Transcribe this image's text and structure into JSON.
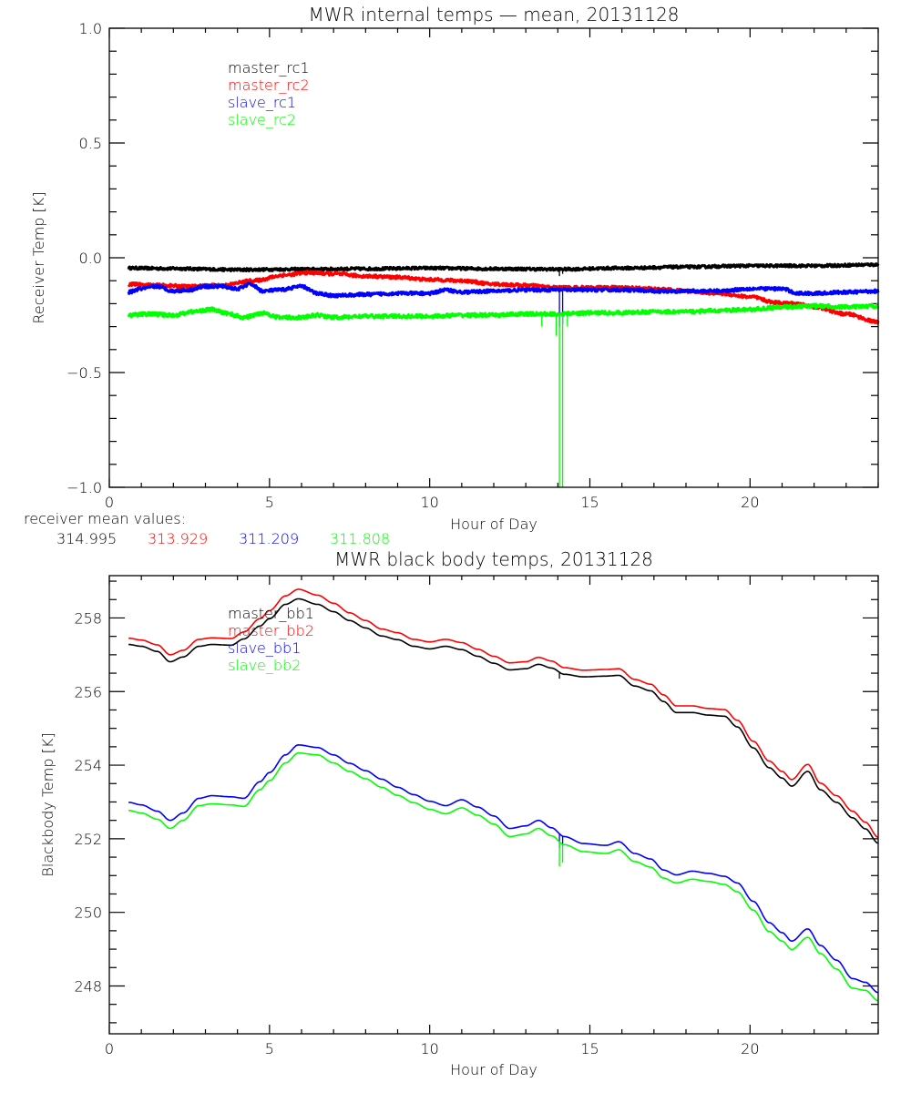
{
  "chart_data": [
    {
      "type": "line",
      "title": "MWR internal temps — mean, 20131128",
      "xlabel": "Hour of Day",
      "ylabel": "Receiver Temp [K]",
      "xlim": [
        0,
        24
      ],
      "ylim": [
        -1.0,
        1.0
      ],
      "xticks": [
        0,
        5,
        10,
        15,
        20
      ],
      "xtick_labels": [
        "0",
        "5",
        "10",
        "15",
        "20"
      ],
      "x_minor_step": 1,
      "yticks": [
        -1.0,
        -0.5,
        0.0,
        0.5,
        1.0
      ],
      "ytick_labels": [
        "−1.0",
        "−0.5",
        "0.0",
        "0.5",
        "1.0"
      ],
      "y_minor_step": 0.1,
      "grid": false,
      "legend_position": "top-left",
      "series": [
        {
          "name": "master_rc1",
          "color": "#000000",
          "noise": 0.006,
          "x": [
            0.6,
            2,
            4,
            6,
            8,
            10,
            12,
            14,
            16,
            18,
            20,
            22,
            24
          ],
          "y": [
            -0.045,
            -0.047,
            -0.052,
            -0.05,
            -0.048,
            -0.045,
            -0.048,
            -0.05,
            -0.045,
            -0.04,
            -0.035,
            -0.035,
            -0.03
          ],
          "spikes": [
            {
              "x": 14.05,
              "y": -0.08
            },
            {
              "x": 14.15,
              "y": -0.07
            }
          ]
        },
        {
          "name": "master_rc2",
          "color": "#ff0000",
          "noise": 0.007,
          "x": [
            0.6,
            1.5,
            2.5,
            3.5,
            4.5,
            5.5,
            6.2,
            7.0,
            8.0,
            9.0,
            10.0,
            11.0,
            12.0,
            13.0,
            14.0,
            15.0,
            16.0,
            17.0,
            18.0,
            19.0,
            20.0,
            20.8,
            21.5,
            22.0,
            23.0,
            24.0
          ],
          "y": [
            -0.115,
            -0.12,
            -0.125,
            -0.12,
            -0.1,
            -0.075,
            -0.065,
            -0.07,
            -0.08,
            -0.085,
            -0.095,
            -0.1,
            -0.115,
            -0.12,
            -0.13,
            -0.13,
            -0.13,
            -0.135,
            -0.145,
            -0.155,
            -0.17,
            -0.195,
            -0.2,
            -0.215,
            -0.245,
            -0.28
          ]
        },
        {
          "name": "slave_rc1",
          "color": "#0000ff",
          "noise": 0.007,
          "x": [
            0.6,
            1.0,
            1.5,
            2.0,
            2.5,
            3.0,
            3.5,
            4.0,
            4.4,
            4.8,
            5.3,
            6.0,
            6.5,
            7.0,
            8.0,
            9.0,
            10.0,
            10.5,
            11.0,
            12.0,
            13.0,
            14.0,
            15.0,
            16.0,
            17.0,
            18.0,
            19.0,
            20.0,
            21.0,
            21.5,
            22.0,
            23.0,
            24.0
          ],
          "y": [
            -0.15,
            -0.135,
            -0.125,
            -0.145,
            -0.14,
            -0.125,
            -0.125,
            -0.135,
            -0.115,
            -0.145,
            -0.14,
            -0.125,
            -0.155,
            -0.165,
            -0.16,
            -0.155,
            -0.155,
            -0.14,
            -0.15,
            -0.145,
            -0.14,
            -0.14,
            -0.14,
            -0.14,
            -0.145,
            -0.145,
            -0.145,
            -0.135,
            -0.135,
            -0.155,
            -0.155,
            -0.15,
            -0.145
          ],
          "spikes": [
            {
              "x": 14.05,
              "y": -0.3
            },
            {
              "x": 14.15,
              "y": -0.29
            }
          ]
        },
        {
          "name": "slave_rc2",
          "color": "#00ff00",
          "noise": 0.008,
          "x": [
            0.6,
            1.2,
            2.0,
            2.6,
            3.2,
            3.6,
            4.2,
            4.8,
            5.3,
            6.0,
            6.5,
            7.0,
            8.0,
            9.0,
            10.0,
            11.0,
            12.0,
            13.0,
            14.0,
            15.0,
            16.0,
            17.0,
            18.0,
            19.0,
            20.0,
            21.0,
            22.0,
            23.0,
            24.0
          ],
          "y": [
            -0.25,
            -0.245,
            -0.25,
            -0.235,
            -0.225,
            -0.24,
            -0.26,
            -0.24,
            -0.26,
            -0.26,
            -0.25,
            -0.26,
            -0.255,
            -0.255,
            -0.255,
            -0.25,
            -0.25,
            -0.245,
            -0.245,
            -0.24,
            -0.24,
            -0.235,
            -0.235,
            -0.23,
            -0.225,
            -0.215,
            -0.21,
            -0.215,
            -0.21
          ],
          "spikes": [
            {
              "x": 13.5,
              "y": -0.3
            },
            {
              "x": 13.95,
              "y": -0.34
            },
            {
              "x": 14.05,
              "y": -1.0
            },
            {
              "x": 14.15,
              "y": -1.0
            },
            {
              "x": 14.3,
              "y": -0.3
            }
          ]
        }
      ],
      "annotation": {
        "label": "receiver mean values:",
        "values": [
          {
            "text": "314.995",
            "color": "#000000"
          },
          {
            "text": "313.929",
            "color": "#ff0000"
          },
          {
            "text": "311.209",
            "color": "#0000ff"
          },
          {
            "text": "311.808",
            "color": "#00ff00"
          }
        ]
      }
    },
    {
      "type": "line",
      "title": "MWR black body temps, 20131128",
      "xlabel": "Hour of Day",
      "ylabel": "Blackbody Temp [K]",
      "xlim": [
        0,
        24
      ],
      "ylim": [
        246.7,
        259.15
      ],
      "xticks": [
        0,
        5,
        10,
        15,
        20
      ],
      "xtick_labels": [
        "0",
        "5",
        "10",
        "15",
        "20"
      ],
      "x_minor_step": 1,
      "yticks": [
        248,
        250,
        252,
        254,
        256,
        258
      ],
      "ytick_labels": [
        "248",
        "250",
        "252",
        "254",
        "256",
        "258"
      ],
      "y_minor_step": 0.5,
      "grid": false,
      "legend_position": "top-left",
      "series": [
        {
          "name": "master_bb1",
          "color": "#000000",
          "x": [
            0.6,
            1.0,
            1.5,
            1.9,
            2.3,
            2.8,
            3.2,
            3.8,
            4.2,
            4.7,
            5.0,
            5.5,
            5.9,
            6.5,
            7.0,
            7.5,
            8.0,
            8.5,
            9.0,
            9.5,
            10.0,
            10.5,
            11.0,
            11.5,
            12.0,
            12.5,
            13.0,
            13.4,
            13.8,
            14.2,
            14.8,
            15.5,
            15.9,
            16.4,
            16.9,
            17.3,
            17.7,
            18.2,
            18.7,
            19.2,
            19.6,
            20.1,
            20.6,
            21.0,
            21.3,
            21.8,
            22.2,
            22.7,
            23.2,
            23.6,
            24.0
          ],
          "y": [
            257.28,
            257.23,
            257.09,
            256.81,
            256.94,
            257.23,
            257.28,
            257.26,
            257.43,
            257.78,
            257.98,
            258.37,
            258.52,
            258.37,
            258.17,
            257.93,
            257.73,
            257.51,
            257.41,
            257.23,
            257.16,
            257.23,
            257.14,
            256.96,
            256.77,
            256.59,
            256.62,
            256.74,
            256.64,
            256.47,
            256.4,
            256.42,
            256.44,
            256.15,
            256.02,
            255.73,
            255.43,
            255.43,
            255.36,
            255.33,
            255.04,
            254.47,
            253.93,
            253.65,
            253.43,
            253.83,
            253.33,
            252.99,
            252.57,
            252.27,
            251.88
          ],
          "spikes": [
            {
              "x": 14.05,
              "y": 256.35
            }
          ]
        },
        {
          "name": "master_bb2",
          "color": "#ff0000",
          "x": [
            0.6,
            1.0,
            1.5,
            1.9,
            2.3,
            2.8,
            3.2,
            3.8,
            4.2,
            4.7,
            5.0,
            5.5,
            5.9,
            6.5,
            7.0,
            7.5,
            8.0,
            8.5,
            9.0,
            9.5,
            10.0,
            10.5,
            11.0,
            11.5,
            12.0,
            12.5,
            13.0,
            13.4,
            13.8,
            14.2,
            14.8,
            15.5,
            15.9,
            16.4,
            16.9,
            17.3,
            17.7,
            18.2,
            18.7,
            19.2,
            19.6,
            20.1,
            20.6,
            21.0,
            21.3,
            21.8,
            22.2,
            22.7,
            23.2,
            23.6,
            24.0
          ],
          "y": [
            257.45,
            257.4,
            257.27,
            257.0,
            257.12,
            257.42,
            257.46,
            257.44,
            257.62,
            257.98,
            258.2,
            258.6,
            258.78,
            258.62,
            258.4,
            258.14,
            257.93,
            257.7,
            257.6,
            257.42,
            257.35,
            257.42,
            257.33,
            257.15,
            256.96,
            256.78,
            256.81,
            256.93,
            256.83,
            256.65,
            256.58,
            256.6,
            256.62,
            256.33,
            256.2,
            255.91,
            255.61,
            255.61,
            255.54,
            255.51,
            255.22,
            254.65,
            254.11,
            253.83,
            253.61,
            254.02,
            253.51,
            253.17,
            252.75,
            252.45,
            252.04
          ]
        },
        {
          "name": "slave_bb1",
          "color": "#0000ff",
          "x": [
            0.6,
            1.0,
            1.5,
            1.9,
            2.3,
            2.8,
            3.2,
            3.8,
            4.2,
            4.7,
            5.0,
            5.5,
            5.9,
            6.5,
            7.0,
            7.5,
            8.0,
            8.5,
            9.0,
            9.5,
            10.0,
            10.5,
            11.0,
            11.5,
            12.0,
            12.5,
            13.0,
            13.4,
            13.8,
            14.2,
            14.8,
            15.5,
            15.9,
            16.4,
            16.9,
            17.3,
            17.7,
            18.2,
            18.7,
            19.2,
            19.6,
            20.1,
            20.6,
            21.0,
            21.3,
            21.8,
            22.2,
            22.7,
            23.2,
            23.6,
            24.0
          ],
          "y": [
            252.99,
            252.92,
            252.75,
            252.5,
            252.7,
            253.1,
            253.17,
            253.14,
            253.1,
            253.55,
            253.8,
            254.28,
            254.55,
            254.48,
            254.28,
            254.05,
            253.85,
            253.62,
            253.4,
            253.2,
            253.02,
            252.9,
            253.06,
            252.86,
            252.62,
            252.28,
            252.35,
            252.5,
            252.3,
            252.06,
            251.87,
            251.82,
            251.92,
            251.6,
            251.45,
            251.15,
            251.02,
            251.12,
            251.06,
            250.98,
            250.8,
            250.3,
            249.72,
            249.45,
            249.22,
            249.55,
            249.1,
            248.7,
            248.2,
            248.1,
            247.82
          ],
          "spikes": [
            {
              "x": 14.05,
              "y": 251.75
            },
            {
              "x": 14.15,
              "y": 251.8
            }
          ]
        },
        {
          "name": "slave_bb2",
          "color": "#00ff00",
          "x": [
            0.6,
            1.0,
            1.5,
            1.9,
            2.3,
            2.8,
            3.2,
            3.8,
            4.2,
            4.7,
            5.0,
            5.5,
            5.9,
            6.5,
            7.0,
            7.5,
            8.0,
            8.5,
            9.0,
            9.5,
            10.0,
            10.5,
            11.0,
            11.5,
            12.0,
            12.5,
            13.0,
            13.4,
            13.8,
            14.2,
            14.8,
            15.5,
            15.9,
            16.4,
            16.9,
            17.3,
            17.7,
            18.2,
            18.7,
            19.2,
            19.6,
            20.1,
            20.6,
            21.0,
            21.3,
            21.8,
            22.2,
            22.7,
            23.2,
            23.6,
            24.0
          ],
          "y": [
            252.77,
            252.7,
            252.53,
            252.28,
            252.5,
            252.9,
            252.95,
            252.92,
            252.88,
            253.33,
            253.58,
            254.06,
            254.33,
            254.28,
            254.06,
            253.83,
            253.63,
            253.4,
            253.18,
            252.98,
            252.8,
            252.68,
            252.84,
            252.64,
            252.4,
            252.06,
            252.13,
            252.28,
            252.08,
            251.84,
            251.65,
            251.6,
            251.7,
            251.38,
            251.23,
            250.93,
            250.8,
            250.9,
            250.84,
            250.76,
            250.56,
            250.06,
            249.48,
            249.22,
            248.99,
            249.32,
            248.88,
            248.46,
            247.94,
            247.88,
            247.6
          ],
          "spikes": [
            {
              "x": 14.05,
              "y": 251.25
            },
            {
              "x": 14.15,
              "y": 251.35
            }
          ]
        }
      ]
    }
  ]
}
